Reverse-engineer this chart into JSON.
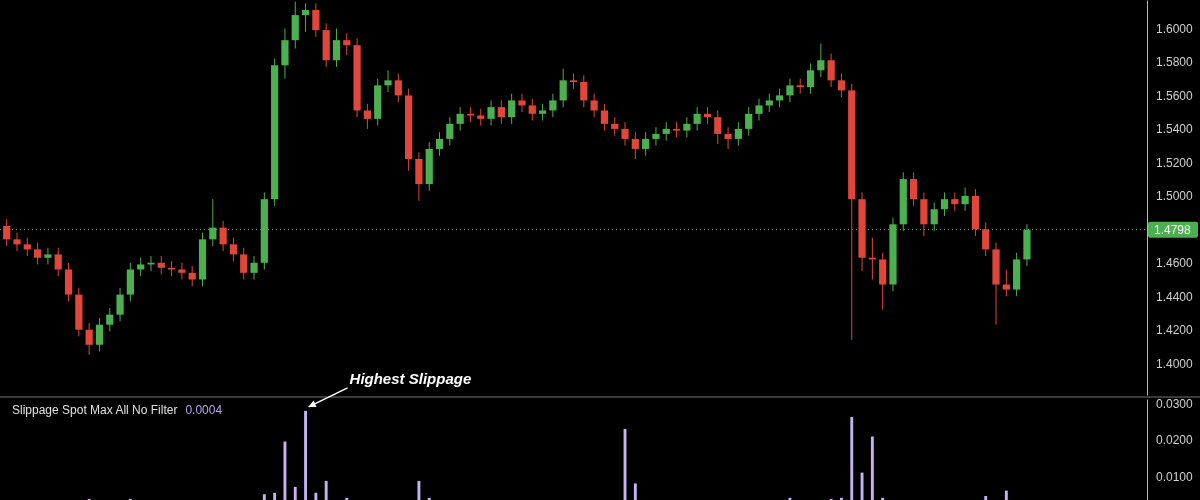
{
  "chart_data": [
    {
      "type": "candlestick",
      "categories": [
        null,
        null,
        null,
        null,
        null,
        null,
        null,
        null,
        null,
        null,
        null,
        null,
        null,
        null,
        null,
        null,
        null,
        null,
        null,
        null,
        null,
        null,
        null,
        null,
        null,
        null,
        null,
        null,
        null,
        null,
        null,
        null,
        null,
        null,
        null,
        null,
        null,
        null,
        null,
        null,
        null,
        null,
        null,
        null,
        null,
        null,
        null,
        null,
        null,
        null,
        null,
        null,
        null,
        null,
        null,
        null,
        null,
        null,
        null,
        null,
        null,
        null,
        null,
        null,
        null,
        null,
        null,
        null,
        null,
        null,
        null,
        null,
        null,
        null,
        null,
        null,
        null,
        null,
        null,
        null,
        null,
        null,
        null,
        null,
        null,
        null,
        null,
        null,
        null,
        null,
        null,
        null,
        null,
        null,
        null,
        null,
        null,
        null,
        null,
        null,
        null,
        null,
        null,
        null,
        null,
        null,
        null,
        null,
        null,
        null,
        null
      ],
      "ohlc": [
        [
          1.482,
          1.486,
          1.47,
          1.474
        ],
        [
          1.474,
          1.478,
          1.467,
          1.471
        ],
        [
          1.471,
          1.475,
          1.464,
          1.468
        ],
        [
          1.468,
          1.472,
          1.459,
          1.463
        ],
        [
          1.463,
          1.469,
          1.459,
          1.465
        ],
        [
          1.465,
          1.469,
          1.452,
          1.456
        ],
        [
          1.456,
          1.46,
          1.437,
          1.441
        ],
        [
          1.441,
          1.445,
          1.416,
          1.42
        ],
        [
          1.42,
          1.424,
          1.405,
          1.411
        ],
        [
          1.411,
          1.427,
          1.407,
          1.423
        ],
        [
          1.423,
          1.433,
          1.419,
          1.429
        ],
        [
          1.429,
          1.445,
          1.425,
          1.441
        ],
        [
          1.441,
          1.46,
          1.437,
          1.456
        ],
        [
          1.456,
          1.463,
          1.452,
          1.459
        ],
        [
          1.459,
          1.464,
          1.455,
          1.46
        ],
        [
          1.46,
          1.464,
          1.453,
          1.457
        ],
        [
          1.457,
          1.461,
          1.452,
          1.456
        ],
        [
          1.456,
          1.46,
          1.45,
          1.454
        ],
        [
          1.454,
          1.458,
          1.446,
          1.45
        ],
        [
          1.45,
          1.478,
          1.446,
          1.474
        ],
        [
          1.474,
          1.498,
          1.47,
          1.481
        ],
        [
          1.481,
          1.485,
          1.467,
          1.471
        ],
        [
          1.471,
          1.475,
          1.461,
          1.465
        ],
        [
          1.465,
          1.469,
          1.45,
          1.454
        ],
        [
          1.454,
          1.464,
          1.45,
          1.46
        ],
        [
          1.46,
          1.502,
          1.456,
          1.498
        ],
        [
          1.498,
          1.582,
          1.494,
          1.578
        ],
        [
          1.578,
          1.6,
          1.57,
          1.593
        ],
        [
          1.593,
          1.616,
          1.588,
          1.608
        ],
        [
          1.608,
          1.615,
          1.598,
          1.611
        ],
        [
          1.611,
          1.615,
          1.595,
          1.599
        ],
        [
          1.599,
          1.603,
          1.577,
          1.581
        ],
        [
          1.581,
          1.6,
          1.577,
          1.593
        ],
        [
          1.593,
          1.597,
          1.584,
          1.59
        ],
        [
          1.59,
          1.594,
          1.547,
          1.551
        ],
        [
          1.551,
          1.555,
          1.54,
          1.546
        ],
        [
          1.546,
          1.57,
          1.542,
          1.566
        ],
        [
          1.566,
          1.575,
          1.562,
          1.569
        ],
        [
          1.569,
          1.573,
          1.556,
          1.56
        ],
        [
          1.56,
          1.564,
          1.515,
          1.522
        ],
        [
          1.522,
          1.526,
          1.497,
          1.507
        ],
        [
          1.507,
          1.532,
          1.503,
          1.528
        ],
        [
          1.528,
          1.538,
          1.524,
          1.534
        ],
        [
          1.534,
          1.547,
          1.53,
          1.543
        ],
        [
          1.543,
          1.553,
          1.539,
          1.549
        ],
        [
          1.549,
          1.553,
          1.544,
          1.548
        ],
        [
          1.548,
          1.552,
          1.542,
          1.546
        ],
        [
          1.546,
          1.557,
          1.542,
          1.553
        ],
        [
          1.553,
          1.557,
          1.543,
          1.547
        ],
        [
          1.547,
          1.561,
          1.543,
          1.557
        ],
        [
          1.557,
          1.561,
          1.55,
          1.554
        ],
        [
          1.554,
          1.558,
          1.545,
          1.549
        ],
        [
          1.549,
          1.555,
          1.545,
          1.551
        ],
        [
          1.551,
          1.561,
          1.547,
          1.557
        ],
        [
          1.557,
          1.576,
          1.553,
          1.569
        ],
        [
          1.569,
          1.573,
          1.564,
          1.568
        ],
        [
          1.568,
          1.572,
          1.553,
          1.557
        ],
        [
          1.557,
          1.561,
          1.547,
          1.551
        ],
        [
          1.551,
          1.555,
          1.539,
          1.543
        ],
        [
          1.543,
          1.547,
          1.536,
          1.54
        ],
        [
          1.54,
          1.544,
          1.53,
          1.534
        ],
        [
          1.534,
          1.538,
          1.522,
          1.528
        ],
        [
          1.528,
          1.538,
          1.524,
          1.534
        ],
        [
          1.534,
          1.541,
          1.53,
          1.537
        ],
        [
          1.537,
          1.544,
          1.533,
          1.54
        ],
        [
          1.54,
          1.544,
          1.535,
          1.539
        ],
        [
          1.539,
          1.547,
          1.535,
          1.543
        ],
        [
          1.543,
          1.553,
          1.539,
          1.549
        ],
        [
          1.549,
          1.553,
          1.543,
          1.547
        ],
        [
          1.547,
          1.551,
          1.531,
          1.537
        ],
        [
          1.537,
          1.541,
          1.528,
          1.534
        ],
        [
          1.534,
          1.544,
          1.53,
          1.54
        ],
        [
          1.54,
          1.553,
          1.536,
          1.549
        ],
        [
          1.549,
          1.558,
          1.545,
          1.554
        ],
        [
          1.554,
          1.561,
          1.55,
          1.557
        ],
        [
          1.557,
          1.564,
          1.553,
          1.56
        ],
        [
          1.56,
          1.57,
          1.556,
          1.566
        ],
        [
          1.566,
          1.57,
          1.561,
          1.565
        ],
        [
          1.565,
          1.579,
          1.561,
          1.575
        ],
        [
          1.575,
          1.591,
          1.571,
          1.581
        ],
        [
          1.581,
          1.585,
          1.565,
          1.569
        ],
        [
          1.569,
          1.573,
          1.559,
          1.563
        ],
        [
          1.563,
          1.567,
          1.414,
          1.498
        ],
        [
          1.498,
          1.502,
          1.455,
          1.463
        ],
        [
          1.463,
          1.475,
          1.45,
          1.462
        ],
        [
          1.462,
          1.466,
          1.432,
          1.447
        ],
        [
          1.447,
          1.487,
          1.443,
          1.483
        ],
        [
          1.483,
          1.514,
          1.479,
          1.51
        ],
        [
          1.51,
          1.514,
          1.494,
          1.498
        ],
        [
          1.498,
          1.502,
          1.476,
          1.483
        ],
        [
          1.483,
          1.496,
          1.479,
          1.492
        ],
        [
          1.492,
          1.502,
          1.488,
          1.498
        ],
        [
          1.498,
          1.502,
          1.491,
          1.495
        ],
        [
          1.495,
          1.505,
          1.491,
          1.5
        ],
        [
          1.5,
          1.504,
          1.476,
          1.48
        ],
        [
          1.48,
          1.484,
          1.464,
          1.468
        ],
        [
          1.468,
          1.472,
          1.423,
          1.447
        ],
        [
          1.447,
          1.456,
          1.44,
          1.444
        ],
        [
          1.444,
          1.466,
          1.44,
          1.462
        ],
        [
          1.462,
          1.483,
          1.458,
          1.4798
        ],
        null,
        null,
        null,
        null,
        null,
        null,
        null,
        null,
        null,
        null,
        null
      ],
      "ylim": [
        1.381,
        1.617
      ],
      "yticks": [
        {
          "value": 1.4,
          "label": "1.4000"
        },
        {
          "value": 1.42,
          "label": "1.4200"
        },
        {
          "value": 1.44,
          "label": "1.4400"
        },
        {
          "value": 1.46,
          "label": "1.4600"
        },
        {
          "value": 1.5,
          "label": "1.5000"
        },
        {
          "value": 1.52,
          "label": "1.5200"
        },
        {
          "value": 1.54,
          "label": "1.5400"
        },
        {
          "value": 1.56,
          "label": "1.5600"
        },
        {
          "value": 1.58,
          "label": "1.5800"
        },
        {
          "value": 1.6,
          "label": "1.6000"
        }
      ],
      "tick_labels": "y",
      "ref_lines": [
        {
          "axis": "y",
          "value": 1.4798,
          "label": "1.4798",
          "color": "#4caf50",
          "line_style": "dotted"
        }
      ]
    },
    {
      "type": "bar",
      "title": "Slippage Spot Max All No Filter",
      "subtitle": "0.0004",
      "color": "#c4b3f0",
      "categories": [
        null,
        null,
        null,
        null,
        null,
        null,
        null,
        null,
        null,
        null,
        null,
        null,
        null,
        null,
        null,
        null,
        null,
        null,
        null,
        null,
        null,
        null,
        null,
        null,
        null,
        null,
        null,
        null,
        null,
        null,
        null,
        null,
        null,
        null,
        null,
        null,
        null,
        null,
        null,
        null,
        null,
        null,
        null,
        null,
        null,
        null,
        null,
        null,
        null,
        null,
        null,
        null,
        null,
        null,
        null,
        null,
        null,
        null,
        null,
        null,
        null,
        null,
        null,
        null,
        null,
        null,
        null,
        null,
        null,
        null,
        null,
        null,
        null,
        null,
        null,
        null,
        null,
        null,
        null,
        null,
        null,
        null,
        null,
        null,
        null,
        null,
        null,
        null,
        null,
        null,
        null,
        null,
        null,
        null,
        null,
        null,
        null,
        null,
        null,
        null,
        null,
        null,
        null,
        null,
        null,
        null,
        null,
        null,
        null,
        null,
        null
      ],
      "values": [
        null,
        null,
        null,
        null,
        null,
        null,
        null,
        null,
        0.0037,
        null,
        null,
        null,
        0.0037,
        null,
        null,
        null,
        null,
        null,
        null,
        null,
        null,
        null,
        null,
        null,
        null,
        0.005,
        0.0054,
        0.0196,
        0.007,
        0.0281,
        0.0054,
        0.0087,
        null,
        0.004,
        null,
        null,
        null,
        null,
        null,
        null,
        0.0087,
        0.004,
        null,
        null,
        null,
        null,
        null,
        null,
        null,
        null,
        null,
        null,
        null,
        null,
        null,
        null,
        null,
        null,
        null,
        null,
        0.0231,
        0.008,
        null,
        null,
        null,
        null,
        null,
        null,
        null,
        null,
        null,
        null,
        null,
        null,
        null,
        null,
        0.004,
        null,
        null,
        null,
        0.0037,
        0.004,
        0.0264,
        0.011,
        0.021,
        0.004,
        null,
        null,
        null,
        null,
        null,
        null,
        null,
        null,
        null,
        0.0045,
        null,
        0.006,
        null,
        null,
        null,
        null,
        null,
        null,
        null,
        null,
        null,
        null,
        null,
        null,
        null
      ],
      "ylim": [
        0.0034,
        0.0314
      ],
      "yticks": [
        {
          "value": 0.01,
          "label": "0.0100"
        },
        {
          "value": 0.02,
          "label": "0.0200"
        },
        {
          "value": 0.03,
          "label": "0.0300"
        }
      ],
      "tick_labels": "y",
      "annotations": [
        "Highest Slippage"
      ]
    }
  ]
}
